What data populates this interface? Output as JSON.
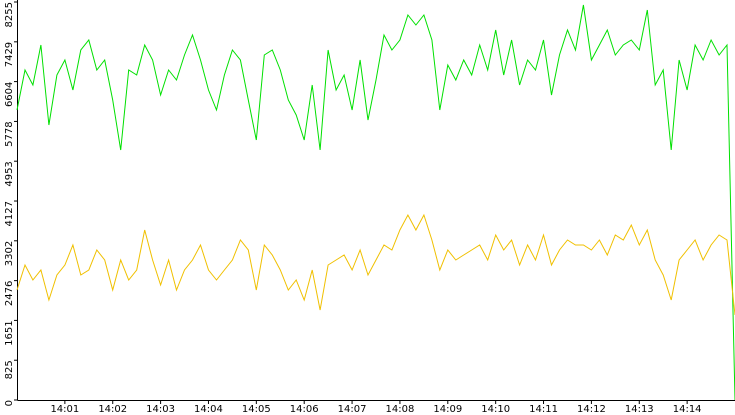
{
  "chart_data": {
    "type": "line",
    "x": [
      0,
      0.167,
      0.333,
      0.5,
      0.667,
      0.833,
      1,
      1.167,
      1.333,
      1.5,
      1.667,
      1.833,
      2,
      2.167,
      2.333,
      2.5,
      2.667,
      2.833,
      3,
      3.167,
      3.333,
      3.5,
      3.667,
      3.833,
      4,
      4.167,
      4.333,
      4.5,
      4.667,
      4.833,
      5,
      5.167,
      5.333,
      5.5,
      5.667,
      5.833,
      6,
      6.167,
      6.333,
      6.5,
      6.667,
      6.833,
      7,
      7.167,
      7.333,
      7.5,
      7.667,
      7.833,
      8,
      8.167,
      8.333,
      8.5,
      8.667,
      8.833,
      9,
      9.167,
      9.333,
      9.5,
      9.667,
      9.833,
      10,
      10.167,
      10.333,
      10.5,
      10.667,
      10.833,
      11,
      11.167,
      11.333,
      11.5,
      11.667,
      11.833,
      12,
      12.167,
      12.333,
      12.5,
      12.667,
      12.833,
      13,
      13.167,
      13.333,
      13.5,
      13.667,
      13.833,
      14,
      14.167,
      14.333,
      14.5,
      14.667,
      14.833,
      15
    ],
    "series": [
      {
        "color": "#00e000",
        "values": [
          6015,
          6844,
          6533,
          7363,
          5704,
          6741,
          7052,
          6429,
          7259,
          7466,
          6844,
          7052,
          6222,
          5185,
          6844,
          6741,
          7363,
          7052,
          6326,
          6844,
          6637,
          7155,
          7570,
          7052,
          6429,
          6015,
          6741,
          7259,
          7052,
          6222,
          5392,
          7155,
          7259,
          6844,
          6222,
          5911,
          5392,
          6533,
          5185,
          7259,
          6429,
          6741,
          6015,
          7052,
          5807,
          6637,
          7570,
          7259,
          7466,
          7985,
          7778,
          7985,
          7466,
          6015,
          6948,
          6637,
          7052,
          6741,
          7363,
          6844,
          7674,
          6741,
          7466,
          6533,
          7052,
          6844,
          7466,
          6326,
          7155,
          7674,
          7259,
          8192,
          7052,
          7363,
          7674,
          7155,
          7363,
          7466,
          7259,
          8089,
          6533,
          6844,
          5185,
          7052,
          6429,
          7363,
          7052,
          7466,
          7155,
          7363,
          0
        ]
      },
      {
        "color": "#f0c000",
        "values": [
          2281,
          2800,
          2489,
          2696,
          2074,
          2593,
          2800,
          3215,
          2593,
          2696,
          3111,
          2904,
          2281,
          2904,
          2489,
          2696,
          3526,
          2904,
          2385,
          2904,
          2281,
          2696,
          2904,
          3215,
          2696,
          2489,
          2696,
          2904,
          3318,
          3111,
          2281,
          3215,
          3007,
          2696,
          2281,
          2489,
          2074,
          2696,
          1867,
          2800,
          2904,
          3007,
          2696,
          3111,
          2593,
          2904,
          3215,
          3111,
          3526,
          3837,
          3526,
          3837,
          3318,
          2696,
          3111,
          2904,
          3007,
          3111,
          3215,
          2904,
          3422,
          3111,
          3318,
          2800,
          3215,
          2904,
          3422,
          2800,
          3111,
          3318,
          3215,
          3215,
          3111,
          3318,
          3007,
          3422,
          3318,
          3630,
          3215,
          3526,
          2904,
          2593,
          2074,
          2904,
          3111,
          3318,
          2904,
          3215,
          3422,
          3318,
          1763
        ]
      }
    ],
    "xlim": [
      0,
      15
    ],
    "xticks": [
      {
        "value": 1,
        "label": "14:01"
      },
      {
        "value": 2,
        "label": "14:02"
      },
      {
        "value": 3,
        "label": "14:03"
      },
      {
        "value": 4,
        "label": "14:04"
      },
      {
        "value": 5,
        "label": "14:05"
      },
      {
        "value": 6,
        "label": "14:06"
      },
      {
        "value": 7,
        "label": "14:07"
      },
      {
        "value": 8,
        "label": "14:08"
      },
      {
        "value": 9,
        "label": "14:09"
      },
      {
        "value": 10,
        "label": "14:10"
      },
      {
        "value": 11,
        "label": "14:11"
      },
      {
        "value": 12,
        "label": "14:12"
      },
      {
        "value": 13,
        "label": "14:13"
      },
      {
        "value": 14,
        "label": "14:14"
      }
    ],
    "ylim": [
      0,
      8255
    ],
    "yticks": [
      0,
      825,
      1651,
      2476,
      3302,
      4127,
      4953,
      5778,
      6604,
      7429,
      8255
    ]
  }
}
